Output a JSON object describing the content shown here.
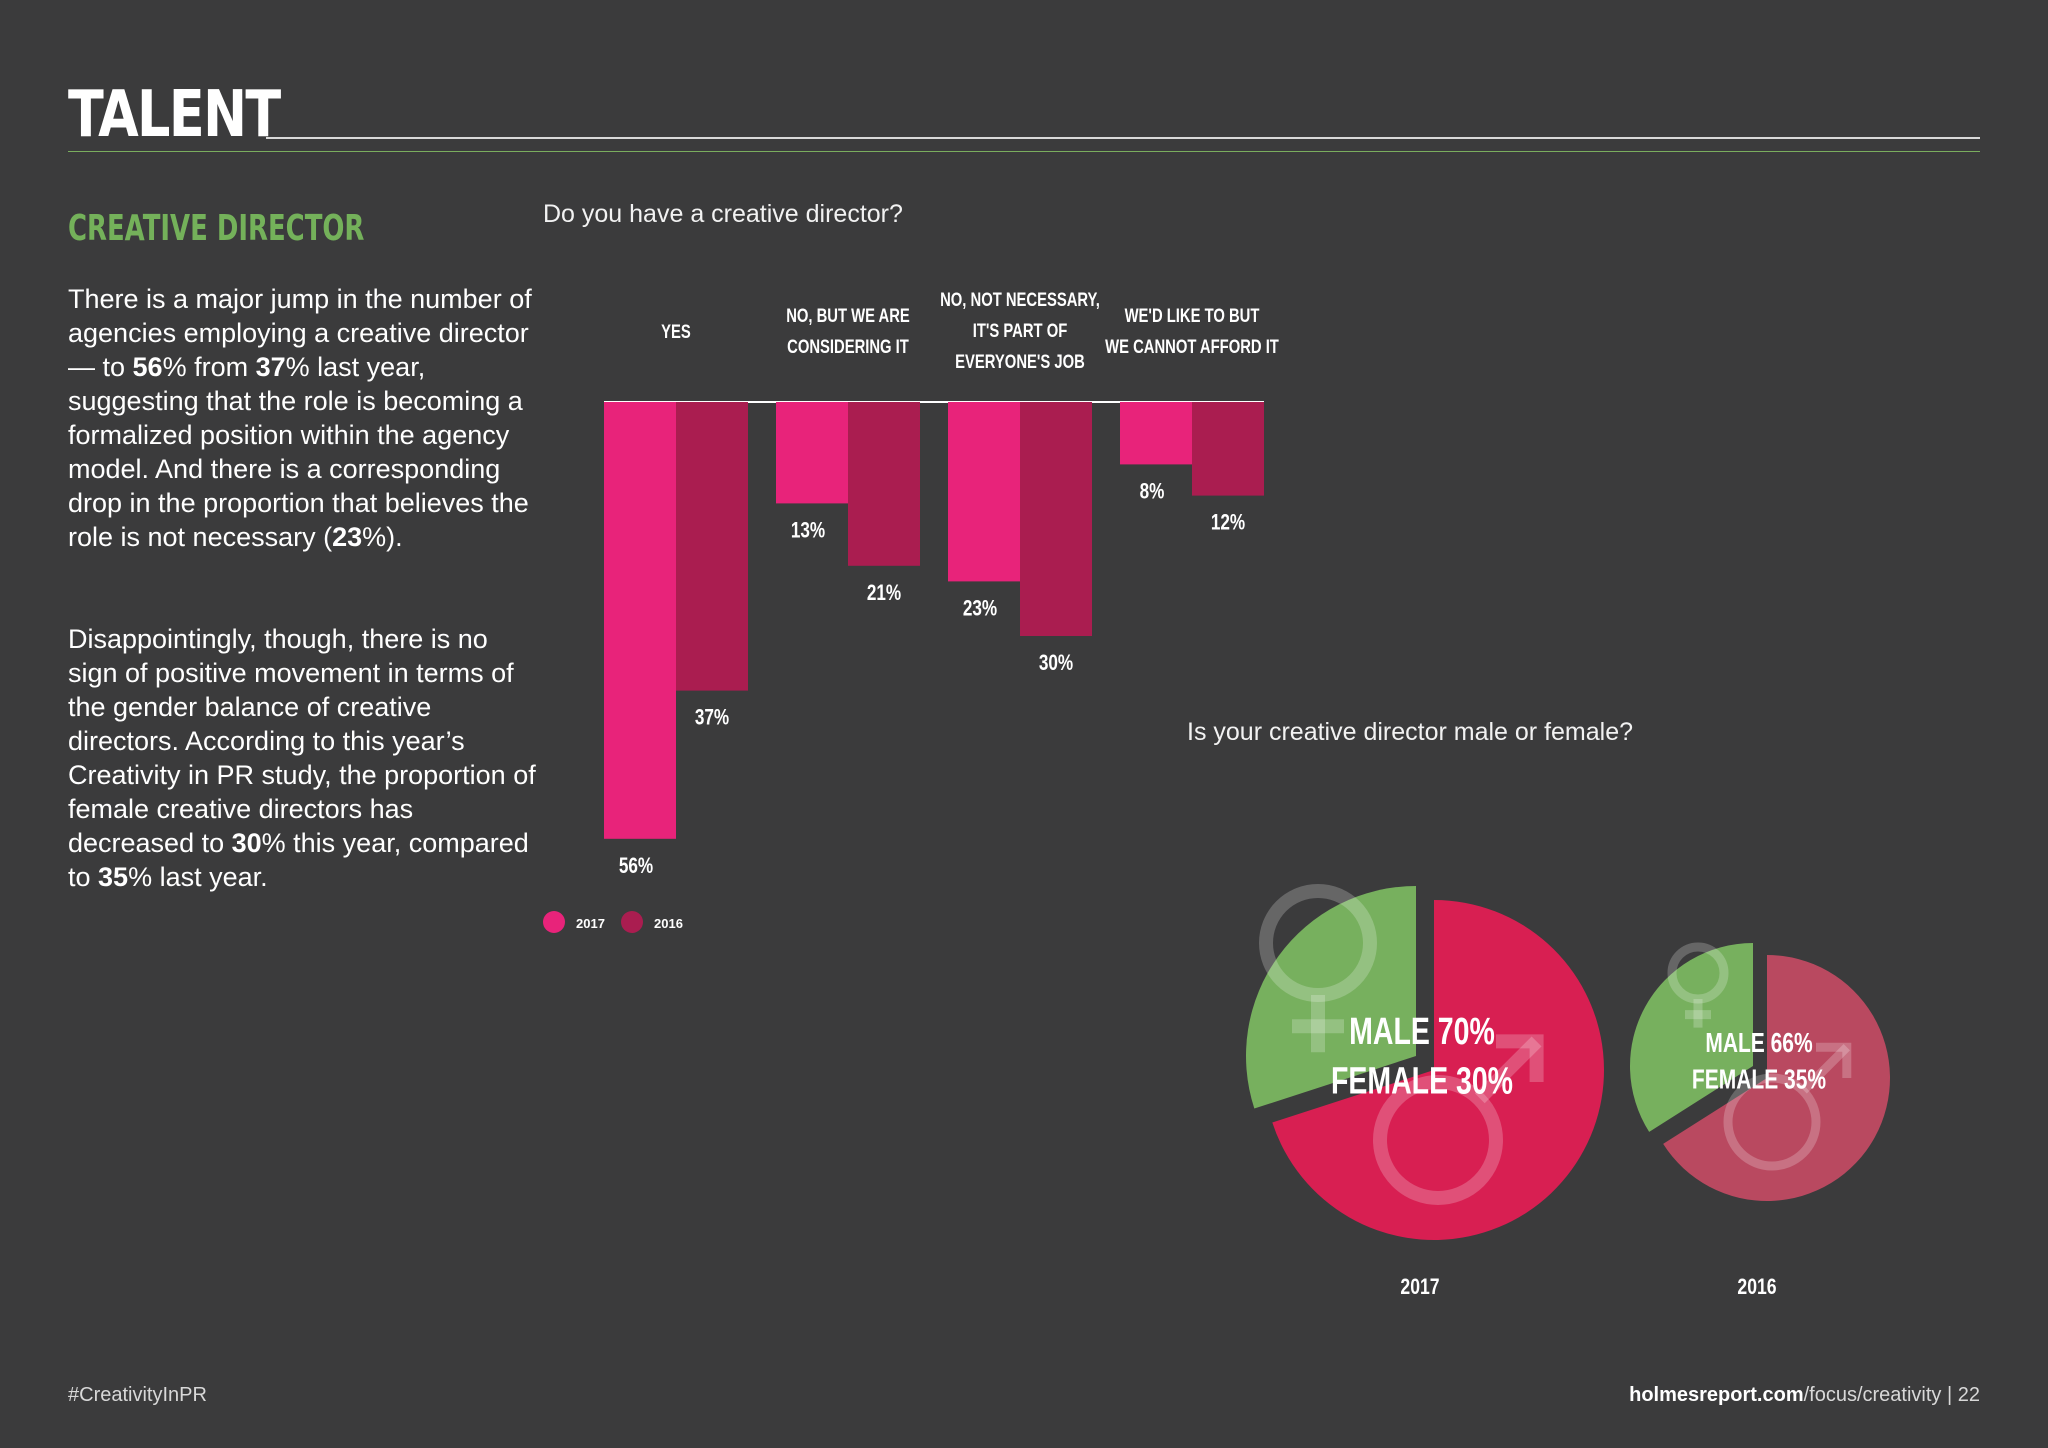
{
  "header": {
    "section_title": "TALENT"
  },
  "sidebar": {
    "subheading": "CREATIVE DIRECTOR",
    "para1": [
      {
        "t": "There is a major jump in the number of agencies employing a creative director — to ",
        "b": false
      },
      {
        "t": "56",
        "b": true
      },
      {
        "t": "% from ",
        "b": false
      },
      {
        "t": "37",
        "b": true
      },
      {
        "t": "% last year, suggesting that the role is becoming a formalized position within the agency model. And there is a corresponding drop in the proportion that believes the role is not necessary (",
        "b": false
      },
      {
        "t": "23",
        "b": true
      },
      {
        "t": "%).",
        "b": false
      }
    ],
    "para2": [
      {
        "t": "Disappointingly, though, there is no sign of positive movement in terms of the gender balance of creative directors. According to this year’s Creativity in PR study, the proportion of female creative directors has decreased to ",
        "b": false
      },
      {
        "t": "30",
        "b": true
      },
      {
        "t": "% this year, compared to ",
        "b": false
      },
      {
        "t": "35",
        "b": true
      },
      {
        "t": "% last year.",
        "b": false
      }
    ]
  },
  "footer": {
    "hashtag": "#CreativityInPR",
    "site": "holmesreport.com",
    "path": "/focus/creativity | 22"
  },
  "chart_data": [
    {
      "type": "bar",
      "title": "Do you have a creative director?",
      "categories": [
        [
          "YES"
        ],
        [
          "NO, BUT WE ARE",
          "CONSIDERING IT"
        ],
        [
          "NO, NOT NECESSARY,",
          "IT'S PART OF",
          "EVERYONE'S JOB"
        ],
        [
          "WE'D LIKE TO BUT",
          "WE CANNOT AFFORD IT"
        ]
      ],
      "series": [
        {
          "name": "2017",
          "values": [
            56,
            13,
            23,
            8
          ],
          "labels": [
            "56%",
            "13%",
            "23%",
            "8%"
          ],
          "color": "#e8237a"
        },
        {
          "name": "2016",
          "values": [
            37,
            21,
            30,
            12
          ],
          "labels": [
            "37%",
            "21%",
            "30%",
            "12%"
          ],
          "color": "#aa1d50"
        }
      ],
      "orientation": "downward from top baseline",
      "ylim": [
        0,
        56
      ]
    },
    {
      "type": "pie",
      "title": "Is your creative director male or female?",
      "pies": [
        {
          "name": "2017",
          "slices": [
            {
              "label": "MALE",
              "value": 70,
              "text": "MALE 70%",
              "color": "#d81f52"
            },
            {
              "label": "FEMALE",
              "value": 30,
              "text": "FEMALE 30%",
              "color": "#77b05e"
            }
          ]
        },
        {
          "name": "2016",
          "slices": [
            {
              "label": "MALE",
              "value": 66,
              "text": "MALE 66%",
              "color": "#b94960"
            },
            {
              "label": "FEMALE",
              "value": 35,
              "text": "FEMALE 35%",
              "color": "#77b05e"
            }
          ]
        }
      ]
    }
  ]
}
